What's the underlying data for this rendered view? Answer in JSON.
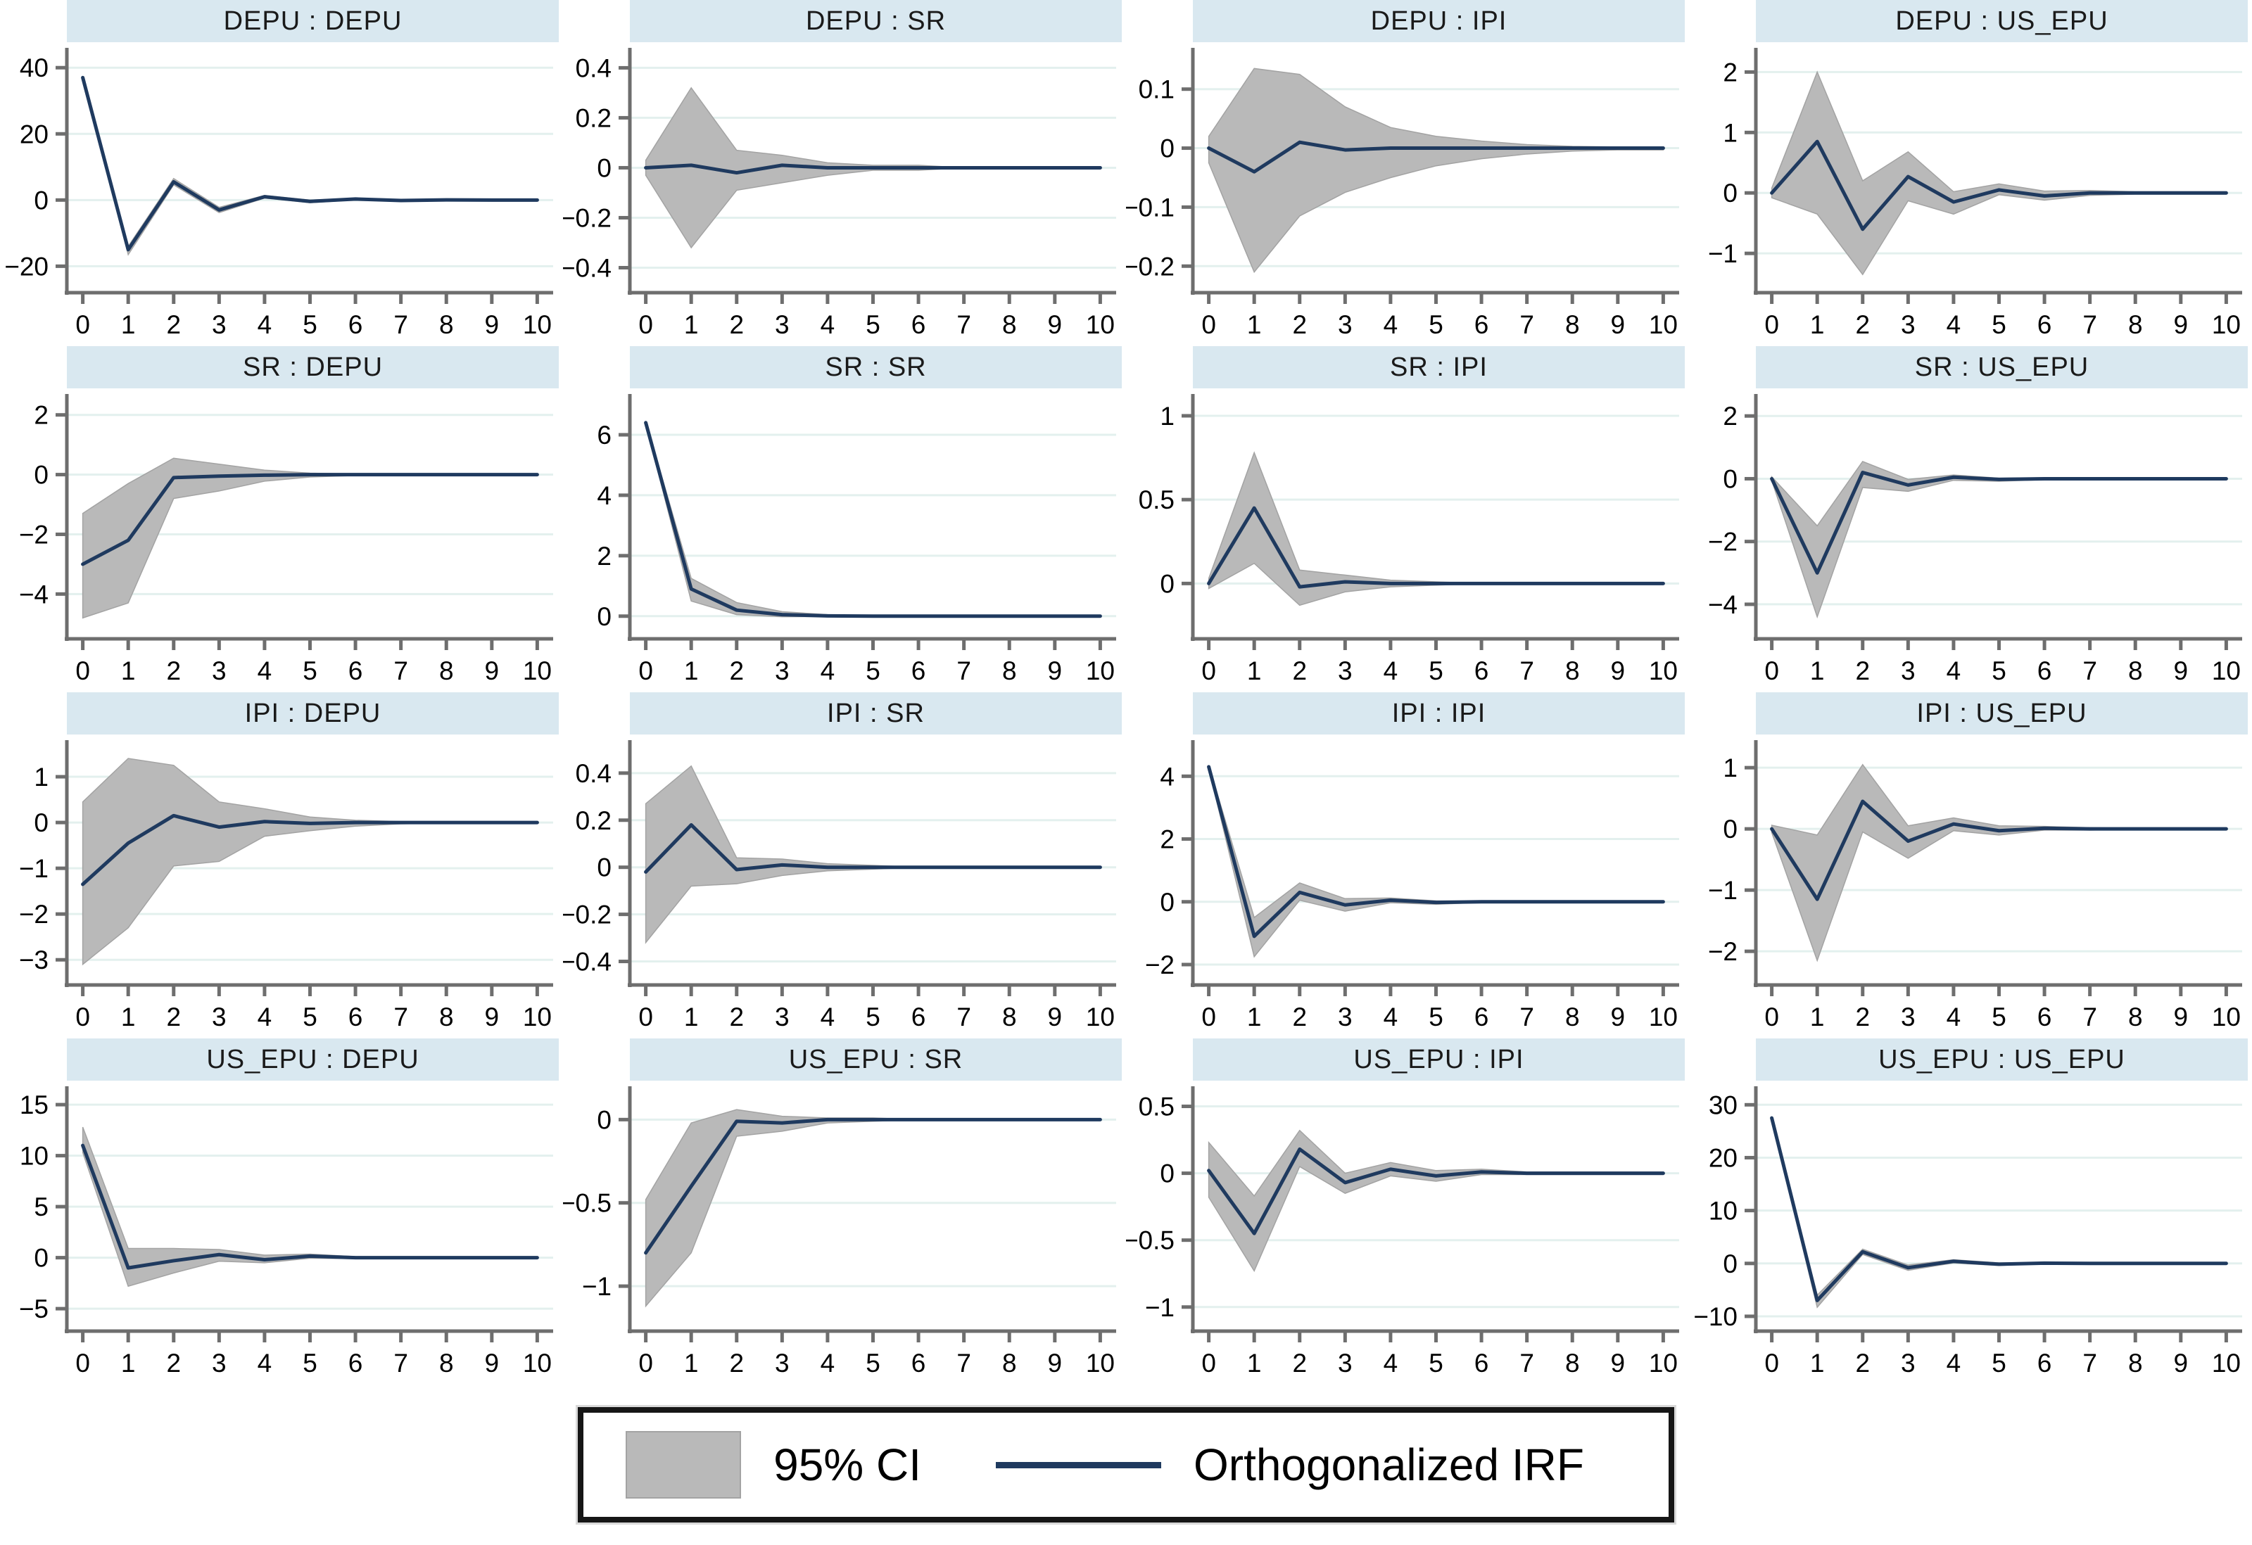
{
  "legend": {
    "ci_label": "95% CI",
    "irf_label": "Orthogonalized IRF"
  },
  "colors": {
    "header_fill": "#d9e8f0",
    "grid_line": "#e3f0ee",
    "irf_line": "#1f3a5f",
    "ci_fill": "#b9b9b9",
    "ci_edge": "#a3a3a3",
    "axis": "#6e6e6e",
    "text": "#000000",
    "legend_border": "#161616"
  },
  "chart_data": {
    "type": "line",
    "subtype": "impulse-response-grid-with-ci-area",
    "layout": {
      "rows": 4,
      "cols": 4,
      "legend_position": "bottom-center",
      "grid": "horizontal-only"
    },
    "x": [
      0,
      1,
      2,
      3,
      4,
      5,
      6,
      7,
      8,
      9,
      10
    ],
    "xlim": [
      -0.35,
      10.35
    ],
    "panels": [
      {
        "title": "DEPU : DEPU",
        "yticks": [
          40,
          20,
          0,
          -20
        ],
        "ylim": [
          -28,
          46
        ],
        "irf": [
          37,
          -15,
          5.5,
          -3,
          1,
          -0.4,
          0.3,
          -0.15,
          0.05,
          0,
          0
        ],
        "ci_upper": [
          37.5,
          -14,
          6.5,
          -2.2,
          1.4,
          0,
          0.5,
          0,
          0.15,
          0.1,
          0.1
        ],
        "ci_lower": [
          36.5,
          -16.5,
          4.6,
          -3.8,
          0.6,
          -0.8,
          0.05,
          -0.35,
          -0.05,
          -0.1,
          -0.1
        ]
      },
      {
        "title": "DEPU : SR",
        "yticks": [
          0.4,
          0.2,
          0,
          -0.2,
          -0.4
        ],
        "ylim": [
          -0.5,
          0.48
        ],
        "irf": [
          0,
          0.01,
          -0.02,
          0.01,
          0,
          0,
          0,
          0,
          0,
          0,
          0
        ],
        "ci_upper": [
          0.03,
          0.32,
          0.07,
          0.05,
          0.02,
          0.01,
          0.01,
          0,
          0,
          0,
          0
        ],
        "ci_lower": [
          -0.03,
          -0.32,
          -0.09,
          -0.06,
          -0.03,
          -0.01,
          -0.01,
          0,
          0,
          0,
          0
        ]
      },
      {
        "title": "DEPU : IPI",
        "yticks": [
          0.1,
          0,
          -0.1,
          -0.2
        ],
        "ylim": [
          -0.245,
          0.17
        ],
        "irf": [
          0,
          -0.04,
          0.01,
          -0.003,
          0,
          0,
          0,
          0,
          0,
          0,
          0
        ],
        "ci_upper": [
          0.02,
          0.135,
          0.125,
          0.07,
          0.035,
          0.02,
          0.012,
          0.006,
          0.003,
          0.002,
          0.002
        ],
        "ci_lower": [
          -0.025,
          -0.21,
          -0.115,
          -0.075,
          -0.05,
          -0.03,
          -0.018,
          -0.01,
          -0.005,
          -0.003,
          -0.003
        ]
      },
      {
        "title": "DEPU : US_EPU",
        "yticks": [
          2,
          1,
          0,
          -1
        ],
        "ylim": [
          -1.65,
          2.4
        ],
        "irf": [
          0,
          0.85,
          -0.6,
          0.27,
          -0.15,
          0.05,
          -0.05,
          0,
          0,
          0,
          0
        ],
        "ci_upper": [
          0.08,
          2.0,
          0.2,
          0.68,
          0.02,
          0.15,
          0.03,
          0.04,
          0.02,
          0.02,
          0.02
        ],
        "ci_lower": [
          -0.08,
          -0.35,
          -1.35,
          -0.13,
          -0.35,
          -0.03,
          -0.12,
          -0.04,
          -0.02,
          -0.02,
          -0.02
        ]
      },
      {
        "title": "SR : DEPU",
        "yticks": [
          2,
          0,
          -2,
          -4
        ],
        "ylim": [
          -5.5,
          2.7
        ],
        "irf": [
          -3,
          -2.2,
          -0.1,
          -0.05,
          -0.02,
          0,
          0,
          0,
          0,
          0,
          0
        ],
        "ci_upper": [
          -1.3,
          -0.3,
          0.55,
          0.35,
          0.15,
          0.05,
          0.02,
          0,
          0,
          0,
          0
        ],
        "ci_lower": [
          -4.8,
          -4.3,
          -0.8,
          -0.55,
          -0.22,
          -0.08,
          -0.03,
          0,
          0,
          0,
          0
        ]
      },
      {
        "title": "SR : SR",
        "yticks": [
          6,
          4,
          2,
          0
        ],
        "ylim": [
          -0.75,
          7.35
        ],
        "irf": [
          6.4,
          0.9,
          0.2,
          0.05,
          0.01,
          0,
          0,
          0,
          0,
          0,
          0
        ],
        "ci_upper": [
          6.45,
          1.25,
          0.45,
          0.15,
          0.05,
          0.02,
          0.01,
          0,
          0,
          0,
          0
        ],
        "ci_lower": [
          6.35,
          0.5,
          0.05,
          -0.02,
          -0.01,
          0,
          0,
          0,
          0,
          0,
          0
        ]
      },
      {
        "title": "SR : IPI",
        "yticks": [
          1,
          0.5,
          0
        ],
        "ylim": [
          -0.33,
          1.13
        ],
        "irf": [
          0,
          0.45,
          -0.02,
          0.01,
          0,
          0,
          0,
          0,
          0,
          0,
          0
        ],
        "ci_upper": [
          0.03,
          0.78,
          0.08,
          0.05,
          0.02,
          0.01,
          0,
          0,
          0,
          0,
          0
        ],
        "ci_lower": [
          -0.03,
          0.12,
          -0.13,
          -0.05,
          -0.02,
          -0.01,
          0,
          0,
          0,
          0,
          0
        ]
      },
      {
        "title": "SR : US_EPU",
        "yticks": [
          2,
          0,
          -2,
          -4
        ],
        "ylim": [
          -5.1,
          2.7
        ],
        "irf": [
          0,
          -3,
          0.2,
          -0.2,
          0.05,
          -0.02,
          0,
          0,
          0,
          0,
          0
        ],
        "ci_upper": [
          0.06,
          -1.5,
          0.55,
          -0.02,
          0.12,
          0.02,
          0.03,
          0.02,
          0.02,
          0.02,
          0.02
        ],
        "ci_lower": [
          -0.06,
          -4.4,
          -0.28,
          -0.4,
          -0.05,
          -0.08,
          -0.03,
          -0.02,
          -0.02,
          -0.02,
          -0.02
        ]
      },
      {
        "title": "IPI : DEPU",
        "yticks": [
          1,
          0,
          -1,
          -2,
          -3
        ],
        "ylim": [
          -3.55,
          1.8
        ],
        "irf": [
          -1.35,
          -0.45,
          0.15,
          -0.1,
          0.02,
          -0.02,
          0,
          0,
          0,
          0,
          0
        ],
        "ci_upper": [
          0.45,
          1.4,
          1.25,
          0.45,
          0.3,
          0.12,
          0.05,
          0.02,
          0.01,
          0.01,
          0.01
        ],
        "ci_lower": [
          -3.1,
          -2.3,
          -0.95,
          -0.85,
          -0.3,
          -0.18,
          -0.08,
          -0.03,
          -0.01,
          -0.01,
          -0.01
        ]
      },
      {
        "title": "IPI : SR",
        "yticks": [
          0.4,
          0.2,
          0,
          -0.2,
          -0.4
        ],
        "ylim": [
          -0.5,
          0.54
        ],
        "irf": [
          -0.02,
          0.18,
          -0.01,
          0.01,
          0,
          0,
          0,
          0,
          0,
          0,
          0
        ],
        "ci_upper": [
          0.27,
          0.43,
          0.04,
          0.035,
          0.015,
          0.008,
          0,
          0,
          0,
          0,
          0
        ],
        "ci_lower": [
          -0.32,
          -0.08,
          -0.07,
          -0.035,
          -0.015,
          -0.008,
          0,
          0,
          0,
          0,
          0
        ]
      },
      {
        "title": "IPI : IPI",
        "yticks": [
          4,
          2,
          0,
          -2
        ],
        "ylim": [
          -2.65,
          5.15
        ],
        "irf": [
          4.3,
          -1.1,
          0.3,
          -0.1,
          0.05,
          -0.02,
          0,
          0,
          0,
          0,
          0
        ],
        "ci_upper": [
          4.35,
          -0.5,
          0.6,
          0.1,
          0.12,
          0.03,
          0.02,
          0.01,
          0.01,
          0.01,
          0.01
        ],
        "ci_lower": [
          4.25,
          -1.75,
          0.05,
          -0.3,
          -0.03,
          -0.08,
          -0.02,
          -0.01,
          -0.01,
          -0.01,
          -0.01
        ]
      },
      {
        "title": "IPI : US_EPU",
        "yticks": [
          1,
          0,
          -1,
          -2
        ],
        "ylim": [
          -2.55,
          1.45
        ],
        "irf": [
          0,
          -1.15,
          0.45,
          -0.2,
          0.08,
          -0.03,
          0.01,
          0,
          0,
          0,
          0
        ],
        "ci_upper": [
          0.06,
          -0.1,
          1.05,
          0.05,
          0.18,
          0.05,
          0.04,
          0.02,
          0.01,
          0.01,
          0.01
        ],
        "ci_lower": [
          -0.06,
          -2.15,
          -0.05,
          -0.48,
          -0.03,
          -0.1,
          -0.02,
          -0.02,
          -0.01,
          -0.01,
          -0.01
        ]
      },
      {
        "title": "US_EPU : DEPU",
        "yticks": [
          15,
          10,
          5,
          0,
          -5
        ],
        "ylim": [
          -7.2,
          16.8
        ],
        "irf": [
          11,
          -1,
          -0.3,
          0.3,
          -0.2,
          0.15,
          0,
          0,
          0,
          0,
          0
        ],
        "ci_upper": [
          12.8,
          0.9,
          0.9,
          0.8,
          0.25,
          0.35,
          0.1,
          0.05,
          0.05,
          0.05,
          0.05
        ],
        "ci_lower": [
          10.3,
          -2.8,
          -1.5,
          -0.35,
          -0.5,
          -0.05,
          -0.1,
          -0.05,
          -0.05,
          -0.05,
          -0.05
        ]
      },
      {
        "title": "US_EPU : SR",
        "yticks": [
          0,
          -0.5,
          -1
        ],
        "ylim": [
          -1.27,
          0.2
        ],
        "irf": [
          -0.8,
          -0.4,
          -0.01,
          -0.02,
          0,
          0,
          0,
          0,
          0,
          0,
          0
        ],
        "ci_upper": [
          -0.48,
          -0.02,
          0.06,
          0.02,
          0.01,
          0.01,
          0,
          0,
          0,
          0,
          0
        ],
        "ci_lower": [
          -1.12,
          -0.8,
          -0.1,
          -0.07,
          -0.02,
          -0.01,
          0,
          0,
          0,
          0,
          0
        ]
      },
      {
        "title": "US_EPU : IPI",
        "yticks": [
          0.5,
          0,
          -0.5,
          -1
        ],
        "ylim": [
          -1.18,
          0.65
        ],
        "irf": [
          0.02,
          -0.45,
          0.18,
          -0.07,
          0.03,
          -0.02,
          0.01,
          0,
          0,
          0,
          0
        ],
        "ci_upper": [
          0.23,
          -0.17,
          0.32,
          0,
          0.08,
          0.02,
          0.03,
          0.01,
          0.01,
          0.01,
          0.01
        ],
        "ci_lower": [
          -0.18,
          -0.73,
          0.05,
          -0.15,
          -0.02,
          -0.06,
          -0.01,
          -0.01,
          -0.01,
          -0.01,
          -0.01
        ]
      },
      {
        "title": "US_EPU : US_EPU",
        "yticks": [
          30,
          20,
          10,
          0,
          -10
        ],
        "ylim": [
          -12.8,
          33.5
        ],
        "irf": [
          27.5,
          -7,
          2.2,
          -0.8,
          0.4,
          -0.15,
          0.05,
          0,
          0,
          0,
          0
        ],
        "ci_upper": [
          27.8,
          -6,
          2.7,
          -0.3,
          0.7,
          0.1,
          0.15,
          0.1,
          0.05,
          0.05,
          0.05
        ],
        "ci_lower": [
          27.2,
          -8.3,
          1.7,
          -1.3,
          0.1,
          -0.4,
          -0.05,
          -0.1,
          -0.05,
          -0.05,
          -0.05
        ]
      }
    ]
  }
}
